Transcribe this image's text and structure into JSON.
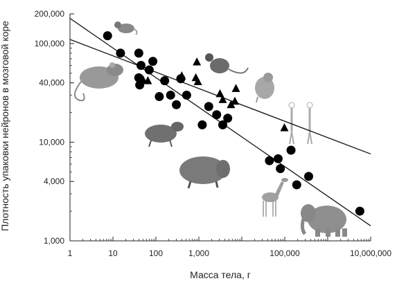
{
  "chart_data": {
    "type": "scatter",
    "title": "",
    "xlabel": "Масса тела, г",
    "ylabel": "Плотность упаковки нейронов в мозговой коре",
    "x_scale": "log",
    "y_scale": "log",
    "xlim": [
      1,
      10000000
    ],
    "ylim": [
      1000,
      200000
    ],
    "x_ticks": [
      {
        "value": 1,
        "label": "1"
      },
      {
        "value": 10,
        "label": "10"
      },
      {
        "value": 100,
        "label": "100"
      },
      {
        "value": 1000,
        "label": "1,000"
      },
      {
        "value": 100000,
        "label": "100,000"
      },
      {
        "value": 10000000,
        "label": "10,000,000"
      }
    ],
    "y_ticks": [
      {
        "value": 1000,
        "label": "1,000"
      },
      {
        "value": 4000,
        "label": "4,000"
      },
      {
        "value": 10000,
        "label": "10,000"
      },
      {
        "value": 40000,
        "label": "40,000"
      },
      {
        "value": 100000,
        "label": "100,000"
      },
      {
        "value": 200000,
        "label": "200,000"
      }
    ],
    "grid": false,
    "series": [
      {
        "marker": "circle",
        "points": [
          [
            7.5,
            120000
          ],
          [
            15,
            80000
          ],
          [
            40,
            80000
          ],
          [
            45,
            60000
          ],
          [
            70,
            54000
          ],
          [
            85,
            66000
          ],
          [
            40,
            45000
          ],
          [
            42,
            38000
          ],
          [
            160,
            42000
          ],
          [
            120,
            29000
          ],
          [
            220,
            30000
          ],
          [
            380,
            44000
          ],
          [
            300,
            24000
          ],
          [
            520,
            30000
          ],
          [
            1200,
            15000
          ],
          [
            1700,
            23000
          ],
          [
            2600,
            19000
          ],
          [
            3600,
            15000
          ],
          [
            4700,
            17500
          ],
          [
            44000,
            6500
          ],
          [
            70000,
            6800
          ],
          [
            79000,
            5400
          ],
          [
            140000,
            8300
          ],
          [
            190000,
            3700
          ],
          [
            360000,
            4500
          ],
          [
            5600000,
            2000
          ]
        ]
      },
      {
        "marker": "triangle",
        "points": [
          [
            50,
            43000
          ],
          [
            65,
            42000
          ],
          [
            400,
            47000
          ],
          [
            900,
            65000
          ],
          [
            850,
            45000
          ],
          [
            950,
            41000
          ],
          [
            3100,
            31000
          ],
          [
            3600,
            27000
          ],
          [
            5600,
            24000
          ],
          [
            6900,
            26000
          ],
          [
            7300,
            35000
          ],
          [
            98000,
            14000
          ]
        ]
      }
    ],
    "trend_lines": [
      {
        "marker": "circle",
        "from": [
          1,
          180000
        ],
        "to": [
          10000000,
          1420
        ]
      },
      {
        "marker": "triangle",
        "from": [
          1,
          110000
        ],
        "to": [
          10000000,
          7600
        ]
      }
    ],
    "pictures": [
      "mouse-picture",
      "rat-picture",
      "agouti-picture",
      "capybara-picture",
      "giraffe-picture",
      "elephant-picture",
      "monkey-picture",
      "macaque-picture",
      "humans-picture"
    ]
  }
}
